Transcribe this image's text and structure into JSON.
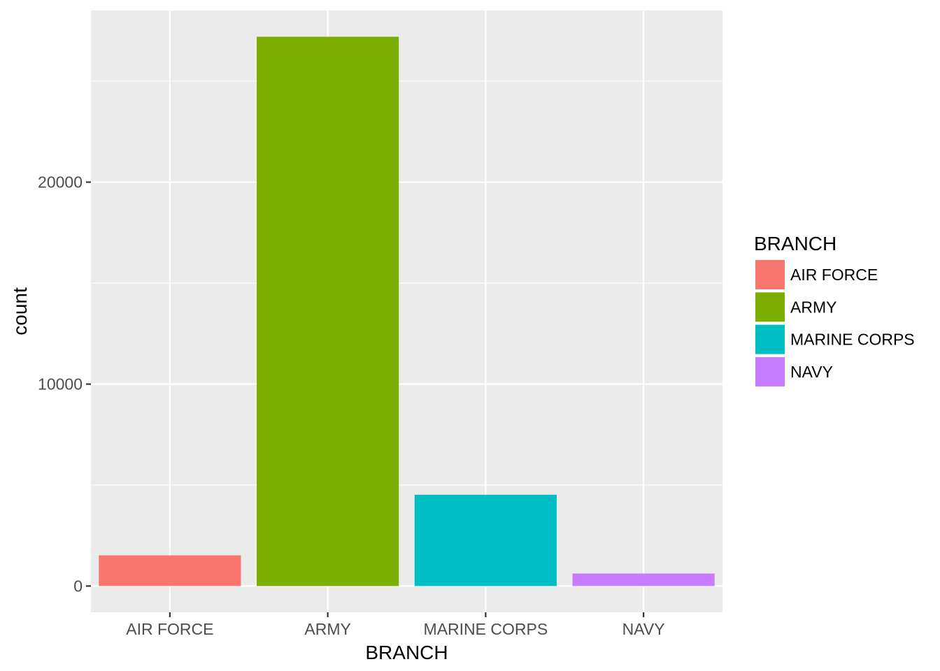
{
  "chart_data": {
    "type": "bar",
    "title": "",
    "xlabel": "BRANCH",
    "ylabel": "count",
    "categories": [
      "AIR FORCE",
      "ARMY",
      "MARINE CORPS",
      "NAVY"
    ],
    "values": [
      1520,
      27200,
      4520,
      620
    ],
    "colors": [
      "#F8766D",
      "#7CAE00",
      "#00BFC4",
      "#C77CFF"
    ],
    "ylim": [
      -1300,
      28500
    ],
    "yticks": [
      0,
      10000,
      20000
    ],
    "ytick_labels": [
      "0",
      "10000",
      "20000"
    ],
    "grid": true,
    "panel_background": "#EBEBEB",
    "grid_color": "#FFFFFF",
    "legend": {
      "title": "BRANCH",
      "placement": "right",
      "entries": [
        "AIR FORCE",
        "ARMY",
        "MARINE CORPS",
        "NAVY"
      ]
    }
  }
}
